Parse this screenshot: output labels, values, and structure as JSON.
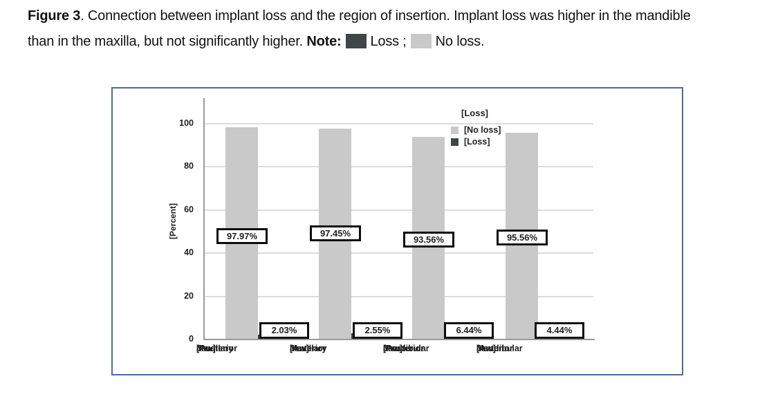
{
  "caption": {
    "figure_label": "Figure 3",
    "line1_rest": ". Connection between implant loss and the region of insertion. Implant loss was higher in the mandible",
    "line2_start": "than in the maxilla, but not significantly higher.",
    "note_label": "Note:",
    "loss_label": "Loss ;",
    "no_loss_label": "No loss.",
    "loss_color": "#404547",
    "no_loss_color": "#c9c9c9"
  },
  "chart_data": {
    "type": "bar",
    "title": "",
    "xlabel": "",
    "ylabel": "[Percent]",
    "yticks": [
      "0",
      "20",
      "40",
      "60",
      "80",
      "100"
    ],
    "ylim": [
      0,
      112
    ],
    "grid": true,
    "frame_color": "#4d6b94",
    "legend": {
      "title": "[Loss]",
      "position": "top-right-inside"
    },
    "categories": [
      [
        "[Posterior",
        "Maxillary",
        "Jaw]"
      ],
      [
        "[Anterior",
        "Maxillary",
        "Jaw]"
      ],
      [
        "[Posterior",
        "Mandibular",
        "Jaw]"
      ],
      [
        "[Anterior",
        "Mandibular",
        "Jaw]"
      ]
    ],
    "series": [
      {
        "name": "[No loss]",
        "color": "#c9c9c9",
        "values": [
          97.97,
          97.45,
          93.56,
          95.56
        ],
        "labels": [
          "97.97%",
          "97.45%",
          "93.56%",
          "95.56%"
        ]
      },
      {
        "name": "[Loss]",
        "color": "#404547",
        "values": [
          2.03,
          2.55,
          6.44,
          4.44
        ],
        "labels": [
          "2.03%",
          "2.55%",
          "6.44%",
          "4.44%"
        ]
      }
    ]
  }
}
